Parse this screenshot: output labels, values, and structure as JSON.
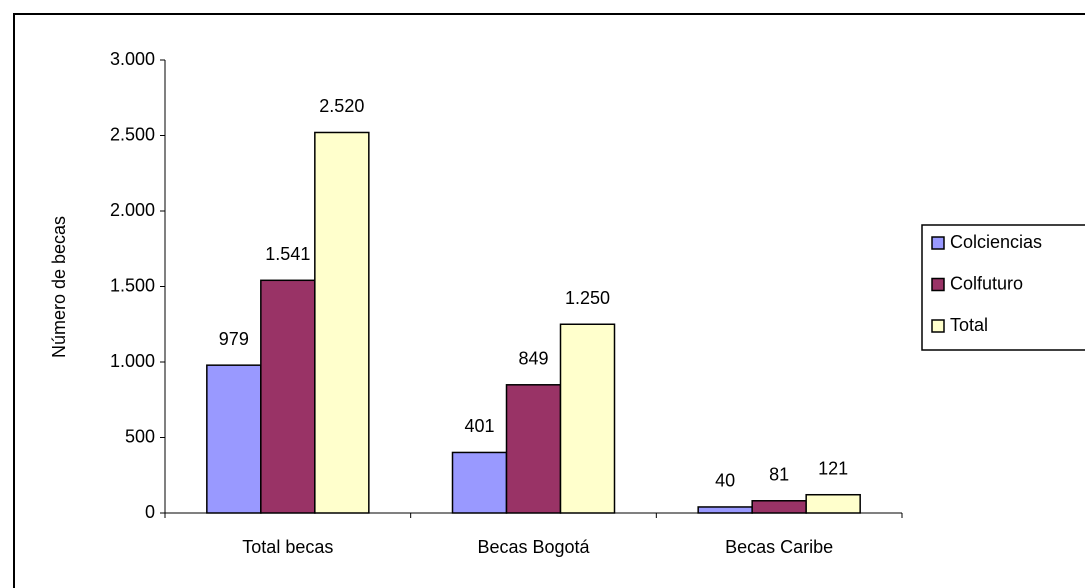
{
  "chart_data": {
    "type": "bar",
    "y_label": "Número de becas",
    "categories": [
      "Total becas",
      "Becas Bogotá",
      "Becas Caribe"
    ],
    "series": [
      {
        "name": "Colciencias",
        "color": "#9999ff",
        "values": [
          979,
          401,
          40
        ],
        "value_labels": [
          "979",
          "401",
          "40"
        ]
      },
      {
        "name": "Colfuturo",
        "color": "#993366",
        "values": [
          1541,
          849,
          81
        ],
        "value_labels": [
          "1.541",
          "849",
          "81"
        ]
      },
      {
        "name": "Total",
        "color": "#ffffcc",
        "values": [
          2520,
          1250,
          121
        ],
        "value_labels": [
          "2.520",
          "1.250",
          "121"
        ]
      }
    ],
    "ylim": [
      0,
      3000
    ],
    "yticks": [
      0,
      500,
      {
        "value": 1000,
        "label": "1.000"
      },
      {
        "value": 1500,
        "label": "1.500"
      },
      {
        "value": 2000,
        "label": "2.000"
      },
      {
        "value": 2500,
        "label": "2.500"
      },
      {
        "value": 3000,
        "label": "3.000"
      }
    ]
  }
}
